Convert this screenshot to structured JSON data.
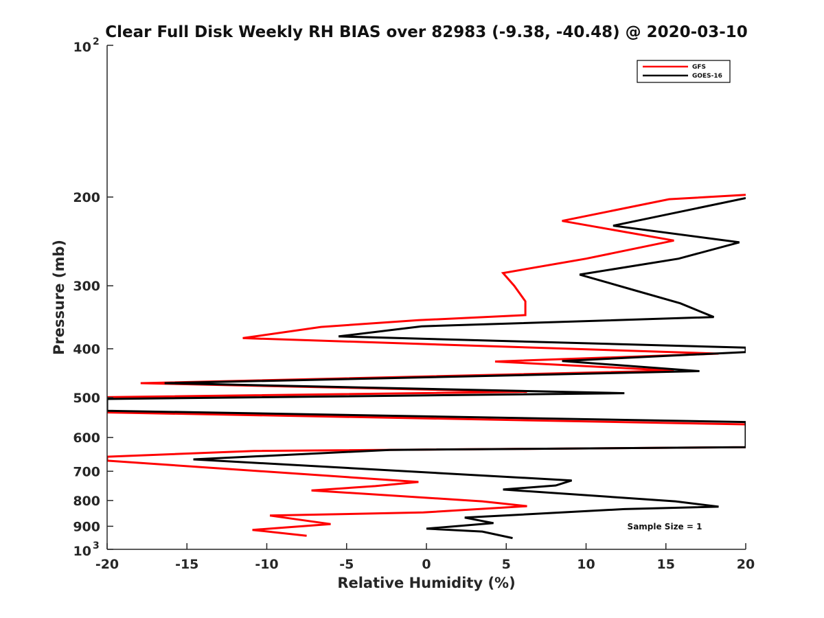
{
  "chart_data": {
    "type": "line",
    "title": "Clear Full Disk Weekly RH BIAS over 82983 (-9.38, -40.48) @ 2020-03-10",
    "xlabel": "Relative Humidity (%)",
    "ylabel": "Pressure (mb)",
    "xlim": [
      -20,
      20
    ],
    "ylim": [
      100,
      1000
    ],
    "yscale": "log",
    "y_reversed": true,
    "x_ticks": [
      -20,
      -15,
      -10,
      -5,
      0,
      5,
      10,
      15,
      20
    ],
    "x_tick_labels": [
      "-20",
      "-15",
      "-10",
      "-5",
      "0",
      "5",
      "10",
      "15",
      "20"
    ],
    "y_ticks": [
      200,
      300,
      400,
      500,
      600,
      700,
      800,
      900
    ],
    "y_tick_labels": [
      "200",
      "300",
      "400",
      "500",
      "600",
      "700",
      "800",
      "900"
    ],
    "y_ticks_exp": [
      {
        "value": 100,
        "base": "10",
        "exp": "2"
      },
      {
        "value": 1000,
        "base": "10",
        "exp": "3"
      }
    ],
    "annotation": "Sample Size = 1",
    "legend_position": "top-right",
    "series": [
      {
        "name": "GFS",
        "color": "#ff0000",
        "points": [
          [
            20,
            198
          ],
          [
            15.2,
            202
          ],
          [
            8.5,
            223
          ],
          [
            15.5,
            244
          ],
          [
            10,
            265
          ],
          [
            4.8,
            283
          ],
          [
            5.5,
            300
          ],
          [
            6.2,
            322
          ],
          [
            6.2,
            343
          ],
          [
            -0.5,
            351
          ],
          [
            -6.6,
            362
          ],
          [
            -11.5,
            381
          ],
          [
            18.3,
            409
          ],
          [
            4.3,
            424
          ],
          [
            15.5,
            442
          ],
          [
            -17.9,
            468
          ],
          [
            6.3,
            487
          ],
          [
            -20,
            499
          ],
          [
            -20,
            535
          ],
          [
            20,
            565
          ],
          [
            20,
            627
          ],
          [
            -10.8,
            638
          ],
          [
            -20,
            655
          ],
          [
            -20,
            667
          ],
          [
            -0.5,
            735
          ],
          [
            -3.2,
            749
          ],
          [
            -7.2,
            764
          ],
          [
            3.5,
            803
          ],
          [
            6.3,
            821
          ],
          [
            -0.2,
            845
          ],
          [
            -9.8,
            857
          ],
          [
            -7.2,
            880
          ],
          [
            -6,
            891
          ],
          [
            -10.9,
            915
          ],
          [
            -7.5,
            940
          ]
        ]
      },
      {
        "name": "GOES-16",
        "color": "#000000",
        "points": [
          [
            20,
            201
          ],
          [
            11.7,
            228
          ],
          [
            19.6,
            246
          ],
          [
            15.8,
            265
          ],
          [
            9.6,
            285
          ],
          [
            13,
            306
          ],
          [
            15.9,
            325
          ],
          [
            18,
            346
          ],
          [
            -0.3,
            361
          ],
          [
            -5.5,
            378
          ],
          [
            20,
            398
          ],
          [
            20,
            406
          ],
          [
            8.5,
            423
          ],
          [
            17.1,
            443
          ],
          [
            -16.4,
            468
          ],
          [
            12.4,
            490
          ],
          [
            -20,
            503
          ],
          [
            -20,
            531
          ],
          [
            20,
            559
          ],
          [
            20,
            627
          ],
          [
            -2.3,
            635
          ],
          [
            -14.6,
            663
          ],
          [
            9.1,
            730
          ],
          [
            8.1,
            747
          ],
          [
            4.8,
            761
          ],
          [
            15.6,
            803
          ],
          [
            18.3,
            823
          ],
          [
            12.4,
            832
          ],
          [
            2.4,
            865
          ],
          [
            4.2,
            887
          ],
          [
            0,
            910
          ],
          [
            3.5,
            922
          ],
          [
            5.4,
            950
          ]
        ]
      }
    ]
  }
}
